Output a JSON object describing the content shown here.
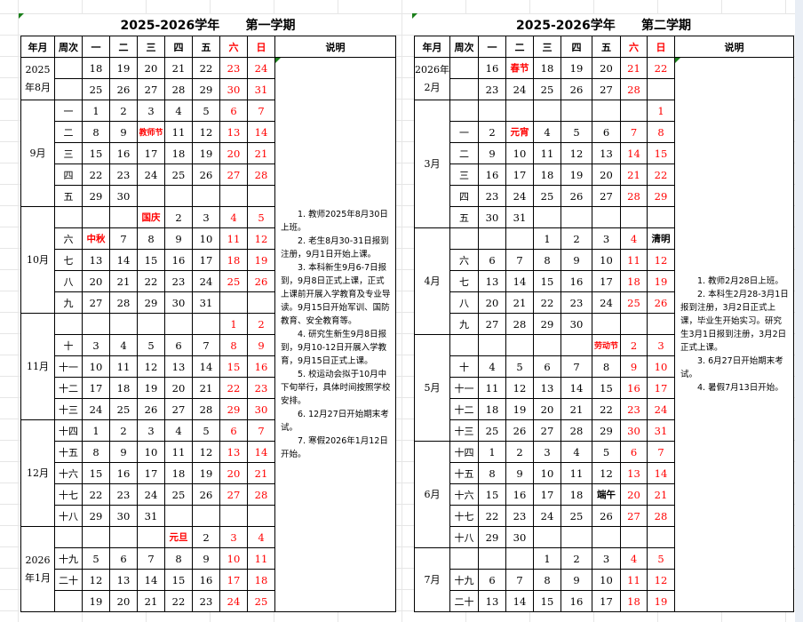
{
  "semesters": [
    {
      "title": "2025-2026学年      第一学期",
      "headers": [
        "年月",
        "周次",
        "一",
        "二",
        "三",
        "四",
        "五",
        "六",
        "日",
        "说明"
      ],
      "months": [
        {
          "label": "2025年8月",
          "rows": [
            {
              "week": "",
              "days": [
                "18",
                "19",
                "20",
                "21",
                "22",
                "23",
                "24"
              ]
            },
            {
              "week": "",
              "days": [
                "25",
                "26",
                "27",
                "28",
                "29",
                "30",
                "31"
              ]
            }
          ]
        },
        {
          "label": "9月",
          "rows": [
            {
              "week": "一",
              "days": [
                "1",
                "2",
                "3",
                "4",
                "5",
                "6",
                "7"
              ]
            },
            {
              "week": "二",
              "days": [
                "8",
                "9",
                "教师节",
                "11",
                "12",
                "13",
                "14"
              ]
            },
            {
              "week": "三",
              "days": [
                "15",
                "16",
                "17",
                "18",
                "19",
                "20",
                "21"
              ]
            },
            {
              "week": "四",
              "days": [
                "22",
                "23",
                "24",
                "25",
                "26",
                "27",
                "28"
              ]
            },
            {
              "week": "五",
              "days": [
                "29",
                "30",
                "",
                "",
                "",
                "",
                ""
              ]
            }
          ]
        },
        {
          "label": "10月",
          "rows": [
            {
              "week": "",
              "days": [
                "",
                "",
                "国庆",
                "2",
                "3",
                "4",
                "5"
              ]
            },
            {
              "week": "六",
              "days": [
                "中秋",
                "7",
                "8",
                "9",
                "10",
                "11",
                "12"
              ]
            },
            {
              "week": "七",
              "days": [
                "13",
                "14",
                "15",
                "16",
                "17",
                "18",
                "19"
              ]
            },
            {
              "week": "八",
              "days": [
                "20",
                "21",
                "22",
                "23",
                "24",
                "25",
                "26"
              ]
            },
            {
              "week": "九",
              "days": [
                "27",
                "28",
                "29",
                "30",
                "31",
                "",
                ""
              ]
            }
          ]
        },
        {
          "label": "11月",
          "rows": [
            {
              "week": "",
              "days": [
                "",
                "",
                "",
                "",
                "",
                "1",
                "2"
              ]
            },
            {
              "week": "十",
              "days": [
                "3",
                "4",
                "5",
                "6",
                "7",
                "8",
                "9"
              ]
            },
            {
              "week": "十一",
              "days": [
                "10",
                "11",
                "12",
                "13",
                "14",
                "15",
                "16"
              ]
            },
            {
              "week": "十二",
              "days": [
                "17",
                "18",
                "19",
                "20",
                "21",
                "22",
                "23"
              ]
            },
            {
              "week": "十三",
              "days": [
                "24",
                "25",
                "26",
                "27",
                "28",
                "29",
                "30"
              ]
            }
          ]
        },
        {
          "label": "12月",
          "rows": [
            {
              "week": "十四",
              "days": [
                "1",
                "2",
                "3",
                "4",
                "5",
                "6",
                "7"
              ]
            },
            {
              "week": "十五",
              "days": [
                "8",
                "9",
                "10",
                "11",
                "12",
                "13",
                "14"
              ]
            },
            {
              "week": "十六",
              "days": [
                "15",
                "16",
                "17",
                "18",
                "19",
                "20",
                "21"
              ]
            },
            {
              "week": "十七",
              "days": [
                "22",
                "23",
                "24",
                "25",
                "26",
                "27",
                "28"
              ]
            },
            {
              "week": "十八",
              "days": [
                "29",
                "30",
                "31",
                "",
                "",
                "",
                ""
              ]
            }
          ]
        },
        {
          "label": "2026年1月",
          "rows": [
            {
              "week": "",
              "days": [
                "",
                "",
                "",
                "元旦",
                "2",
                "3",
                "4"
              ]
            },
            {
              "week": "十九",
              "days": [
                "5",
                "6",
                "7",
                "8",
                "9",
                "10",
                "11"
              ]
            },
            {
              "week": "二十",
              "days": [
                "12",
                "13",
                "14",
                "15",
                "16",
                "17",
                "18"
              ]
            },
            {
              "week": "",
              "days": [
                "19",
                "20",
                "21",
                "22",
                "23",
                "24",
                "25"
              ]
            }
          ]
        }
      ],
      "notes": [
        "1. 教师2025年8月30日上班。",
        "2. 老生8月30-31日报到注册，9月1日开始上课。",
        "3. 本科新生9月6-7日报到，9月8日正式上课，正式上课前开展入学教育及专业导读。9月15日开始军训、国防教育、安全教育等。",
        "4. 研究生新生9月8日报到，9月10-12日开展入学教育，9月15日正式上课。",
        "5. 校运动会拟于10月中下旬举行，具体时间按照学校安排。",
        "6. 12月27日开始期末考试。",
        "7. 寒假2026年1月12日开始。"
      ]
    },
    {
      "title": "2025-2026学年      第二学期",
      "headers": [
        "年月",
        "周次",
        "一",
        "二",
        "三",
        "四",
        "五",
        "六",
        "日",
        "说明"
      ],
      "months": [
        {
          "label": "2026年2月",
          "rows": [
            {
              "week": "",
              "days": [
                "16",
                "春节",
                "18",
                "19",
                "20",
                "21",
                "22"
              ]
            },
            {
              "week": "",
              "days": [
                "23",
                "24",
                "25",
                "26",
                "27",
                "28",
                ""
              ]
            }
          ]
        },
        {
          "label": "3月",
          "rows": [
            {
              "week": "",
              "days": [
                "",
                "",
                "",
                "",
                "",
                "",
                "1"
              ]
            },
            {
              "week": "一",
              "days": [
                "2",
                "元宵",
                "4",
                "5",
                "6",
                "7",
                "8"
              ]
            },
            {
              "week": "二",
              "days": [
                "9",
                "10",
                "11",
                "12",
                "13",
                "14",
                "15"
              ]
            },
            {
              "week": "三",
              "days": [
                "16",
                "17",
                "18",
                "19",
                "20",
                "21",
                "22"
              ]
            },
            {
              "week": "四",
              "days": [
                "23",
                "24",
                "25",
                "26",
                "27",
                "28",
                "29"
              ]
            },
            {
              "week": "五",
              "days": [
                "30",
                "31",
                "",
                "",
                "",
                "",
                ""
              ]
            }
          ]
        },
        {
          "label": "4月",
          "rows": [
            {
              "week": "",
              "days": [
                "",
                "",
                "1",
                "2",
                "3",
                "4",
                "清明"
              ]
            },
            {
              "week": "六",
              "days": [
                "6",
                "7",
                "8",
                "9",
                "10",
                "11",
                "12"
              ]
            },
            {
              "week": "七",
              "days": [
                "13",
                "14",
                "15",
                "16",
                "17",
                "18",
                "19"
              ]
            },
            {
              "week": "八",
              "days": [
                "20",
                "21",
                "22",
                "23",
                "24",
                "25",
                "26"
              ]
            },
            {
              "week": "九",
              "days": [
                "27",
                "28",
                "29",
                "30",
                "",
                "",
                ""
              ]
            }
          ]
        },
        {
          "label": "5月",
          "rows": [
            {
              "week": "",
              "days": [
                "",
                "",
                "",
                "",
                "劳动节",
                "2",
                "3"
              ]
            },
            {
              "week": "十",
              "days": [
                "4",
                "5",
                "6",
                "7",
                "8",
                "9",
                "10"
              ]
            },
            {
              "week": "十一",
              "days": [
                "11",
                "12",
                "13",
                "14",
                "15",
                "16",
                "17"
              ]
            },
            {
              "week": "十二",
              "days": [
                "18",
                "19",
                "20",
                "21",
                "22",
                "23",
                "24"
              ]
            },
            {
              "week": "十三",
              "days": [
                "25",
                "26",
                "27",
                "28",
                "29",
                "30",
                "31"
              ]
            }
          ]
        },
        {
          "label": "6月",
          "rows": [
            {
              "week": "十四",
              "days": [
                "1",
                "2",
                "3",
                "4",
                "5",
                "6",
                "7"
              ]
            },
            {
              "week": "十五",
              "days": [
                "8",
                "9",
                "10",
                "11",
                "12",
                "13",
                "14"
              ]
            },
            {
              "week": "十六",
              "days": [
                "15",
                "16",
                "17",
                "18",
                "端午",
                "20",
                "21"
              ]
            },
            {
              "week": "十七",
              "days": [
                "22",
                "23",
                "24",
                "25",
                "26",
                "27",
                "28"
              ]
            },
            {
              "week": "十八",
              "days": [
                "29",
                "30",
                "",
                "",
                "",
                "",
                ""
              ]
            }
          ]
        },
        {
          "label": "7月",
          "rows": [
            {
              "week": "",
              "days": [
                "",
                "",
                "1",
                "2",
                "3",
                "4",
                "5"
              ]
            },
            {
              "week": "十九",
              "days": [
                "6",
                "7",
                "8",
                "9",
                "10",
                "11",
                "12"
              ]
            },
            {
              "week": "二十",
              "days": [
                "13",
                "14",
                "15",
                "16",
                "17",
                "18",
                "19"
              ]
            }
          ]
        }
      ],
      "notes": [
        "1. 教师2月28日上班。",
        "2. 本科生2月28-3月1日报到注册，3月2日正式上课，毕业生开始实习。研究生3月1日报到注册，3月2日正式上课。",
        "3. 6月27日开始期末考试。",
        "4. 暑假7月13日开始。"
      ]
    }
  ],
  "holiday_colors": {
    "教师节": "#ff0000",
    "国庆": "#ff0000",
    "中秋": "#ff0000",
    "元旦": "#ff0000",
    "春节": "#ff0000",
    "元宵": "#ff0000",
    "劳动节": "#ff0000",
    "清明": "#000000",
    "端午": "#000000"
  },
  "colors": {
    "weekend": "#ff0000",
    "text": "#000000",
    "comment_marker": "#1a7f1a"
  }
}
